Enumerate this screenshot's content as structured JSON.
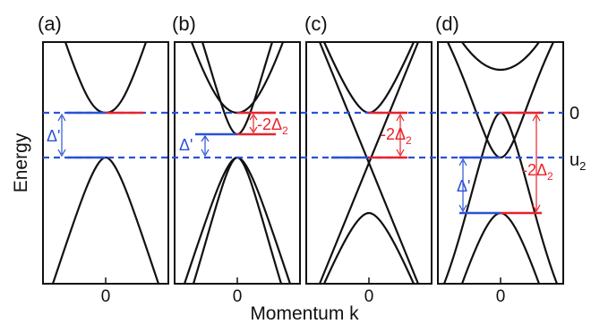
{
  "figure": {
    "y_axis_label": "Energy",
    "x_axis_label": "Momentum k",
    "right_labels": {
      "zero": "0",
      "u2_base": "u",
      "u2_sub": "2"
    },
    "colors": {
      "blue": "#2a52d6",
      "red": "#e8232a",
      "black": "#111111"
    },
    "panels": [
      {
        "tag": "(a)",
        "tick": "0",
        "annotations": [
          {
            "id": "delta-prime",
            "base": "Δ'",
            "sub": "",
            "prefix": "",
            "color": "blue"
          }
        ]
      },
      {
        "tag": "(b)",
        "tick": "0",
        "annotations": [
          {
            "id": "delta-prime",
            "base": "Δ'",
            "sub": "",
            "prefix": "",
            "color": "blue"
          },
          {
            "id": "minus-two-delta2",
            "prefix": "-2",
            "base": "Δ",
            "sub": "2",
            "color": "red"
          }
        ]
      },
      {
        "tag": "(c)",
        "tick": "0",
        "annotations": [
          {
            "id": "minus-two-delta2",
            "prefix": "-2",
            "base": "Δ",
            "sub": "2",
            "color": "red"
          }
        ]
      },
      {
        "tag": "(d)",
        "tick": "0",
        "annotations": [
          {
            "id": "delta-prime",
            "base": "Δ'",
            "sub": "",
            "prefix": "",
            "color": "blue"
          },
          {
            "id": "minus-two-delta2",
            "prefix": "-2",
            "base": "Δ",
            "sub": "2",
            "color": "red"
          }
        ]
      }
    ]
  }
}
